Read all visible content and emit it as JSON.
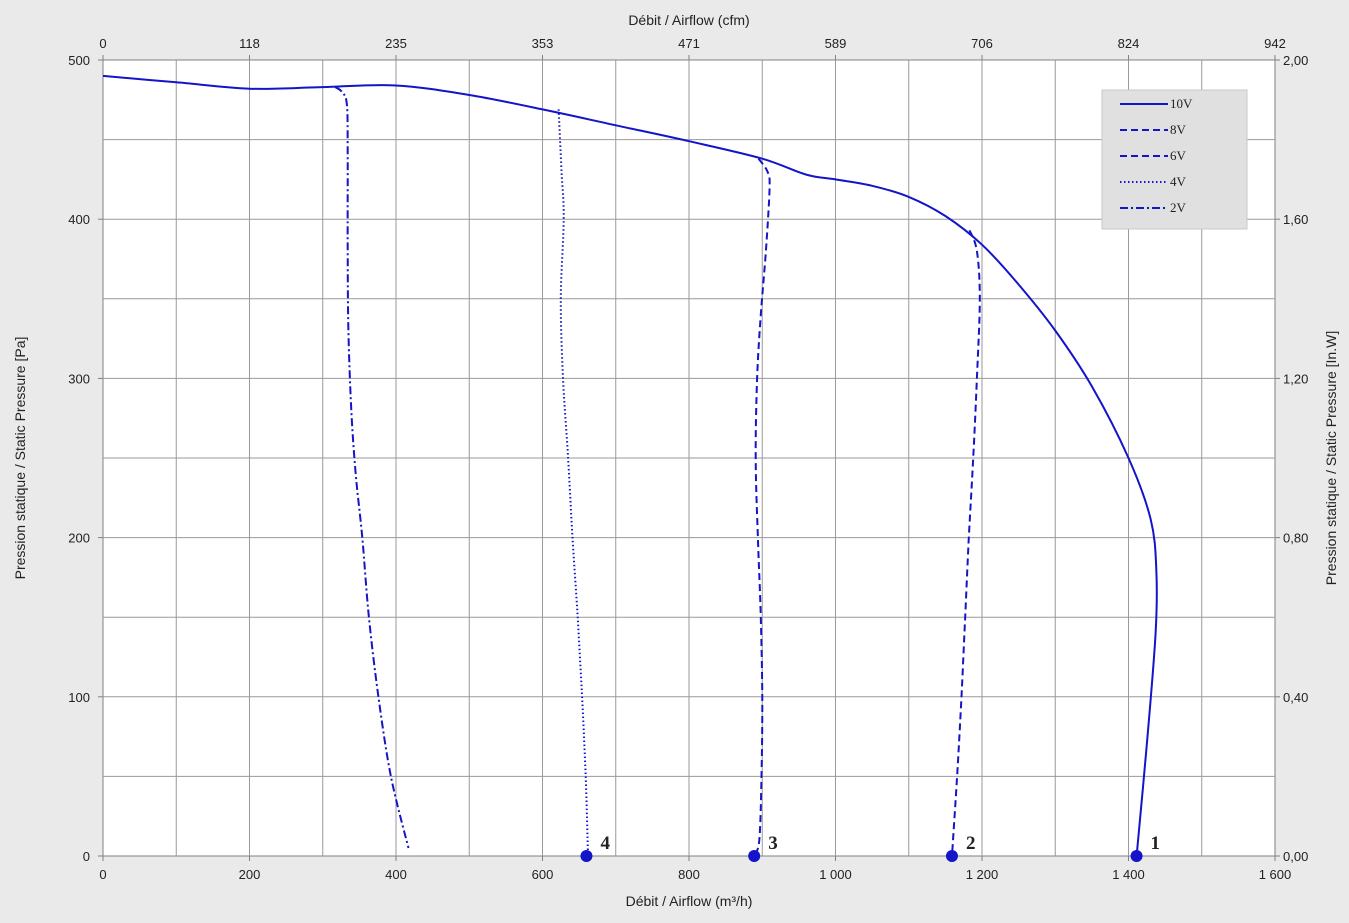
{
  "chart_data": {
    "type": "line",
    "xlabel": "Débit / Airflow (m³/h)",
    "x2label": "Débit / Airflow (cfm)",
    "ylabel": "Pression statique / Static Pressure [Pa]",
    "y2label": "Pression statique / Static Pressure [In.W]",
    "xlim": [
      0,
      1600
    ],
    "ylim": [
      0,
      500
    ],
    "grid": true,
    "legend_position": "top-right",
    "x_ticks": [
      0,
      200,
      400,
      600,
      800,
      1000,
      1200,
      1400,
      1600
    ],
    "x_tick_labels": [
      "0",
      "200",
      "400",
      "600",
      "800",
      "1 000",
      "1 200",
      "1 400",
      "1 600"
    ],
    "y_ticks": [
      0,
      100,
      200,
      300,
      400,
      500
    ],
    "y_tick_labels": [
      "0",
      "100",
      "200",
      "300",
      "400",
      "500"
    ],
    "x2_tick_labels": [
      "0",
      "118",
      "235",
      "353",
      "471",
      "589",
      "706",
      "824",
      "942"
    ],
    "y2_tick_labels": [
      "0,00",
      "0,40",
      "0,80",
      "1,20",
      "1,60",
      "2,00"
    ],
    "series": [
      {
        "name": "10V",
        "style": "solid",
        "color": "#1414c8",
        "points": [
          [
            0,
            490
          ],
          [
            100,
            486
          ],
          [
            200,
            482
          ],
          [
            300,
            483
          ],
          [
            400,
            484
          ],
          [
            500,
            478
          ],
          [
            600,
            469
          ],
          [
            700,
            459
          ],
          [
            800,
            449
          ],
          [
            900,
            438
          ],
          [
            960,
            428
          ],
          [
            1000,
            425
          ],
          [
            1050,
            421
          ],
          [
            1100,
            414
          ],
          [
            1150,
            402
          ],
          [
            1200,
            384
          ],
          [
            1250,
            359
          ],
          [
            1300,
            330
          ],
          [
            1350,
            295
          ],
          [
            1400,
            250
          ],
          [
            1430,
            212
          ],
          [
            1438,
            180
          ],
          [
            1437,
            140
          ],
          [
            1425,
            70
          ],
          [
            1411,
            0
          ]
        ]
      },
      {
        "name": "8V",
        "style": "dashed",
        "color": "#1414c8",
        "points": [
          [
            1183,
            393
          ],
          [
            1193,
            380
          ],
          [
            1197,
            350
          ],
          [
            1193,
            300
          ],
          [
            1188,
            250
          ],
          [
            1182,
            200
          ],
          [
            1177,
            150
          ],
          [
            1172,
            100
          ],
          [
            1166,
            50
          ],
          [
            1159,
            0
          ]
        ]
      },
      {
        "name": "6V",
        "style": "dashed",
        "color": "#1414c8",
        "points": [
          [
            895,
            438
          ],
          [
            907,
            430
          ],
          [
            910,
            420
          ],
          [
            905,
            380
          ],
          [
            898,
            340
          ],
          [
            893,
            300
          ],
          [
            891,
            250
          ],
          [
            894,
            200
          ],
          [
            898,
            150
          ],
          [
            900,
            100
          ],
          [
            899,
            50
          ],
          [
            896,
            10
          ],
          [
            889,
            0
          ]
        ]
      },
      {
        "name": "4V",
        "style": "dotted",
        "color": "#1414c8",
        "points": [
          [
            622,
            469
          ],
          [
            626,
            430
          ],
          [
            629,
            400
          ],
          [
            625,
            350
          ],
          [
            628,
            300
          ],
          [
            635,
            250
          ],
          [
            641,
            200
          ],
          [
            648,
            150
          ],
          [
            654,
            100
          ],
          [
            659,
            50
          ],
          [
            662,
            3
          ]
        ]
      },
      {
        "name": "2V",
        "style": "dashdot",
        "color": "#1414c8",
        "points": [
          [
            317,
            483
          ],
          [
            326,
            480
          ],
          [
            333,
            472
          ],
          [
            334,
            440
          ],
          [
            334,
            380
          ],
          [
            335,
            330
          ],
          [
            339,
            280
          ],
          [
            345,
            240
          ],
          [
            354,
            200
          ],
          [
            363,
            150
          ],
          [
            376,
            100
          ],
          [
            393,
            50
          ],
          [
            417,
            5
          ]
        ]
      }
    ],
    "points": [
      {
        "label": "1",
        "x": 1411,
        "y": 0
      },
      {
        "label": "2",
        "x": 1159,
        "y": 0
      },
      {
        "label": "3",
        "x": 889,
        "y": 0
      },
      {
        "label": "4",
        "x": 660,
        "y": 0
      }
    ]
  }
}
